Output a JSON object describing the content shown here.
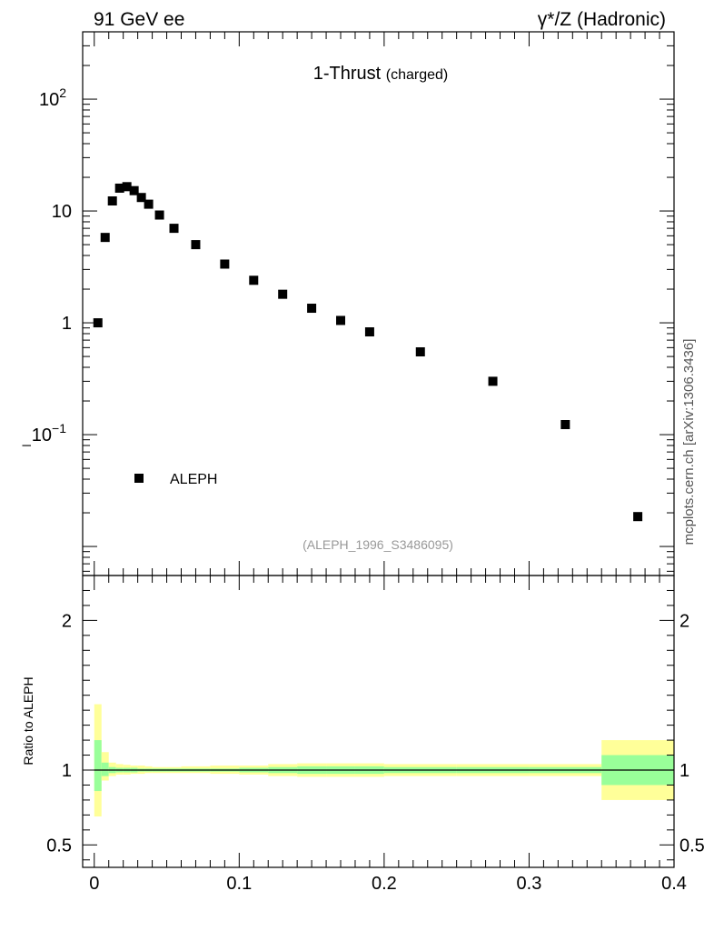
{
  "header": {
    "left": "91 GeV ee",
    "right": "γ*/Z (Hadronic)"
  },
  "side_label": "mcplots.cern.ch [arXiv:1306.3436]",
  "chart_data": [
    {
      "type": "scatter",
      "title_main": "1-Thrust",
      "title_sub": "(charged)",
      "footnote": "(ALEPH_1996_S3486095)",
      "ylabel": "",
      "ylabel_small": "l",
      "yscale": "log",
      "ylim": [
        0.0055,
        400
      ],
      "xlim": [
        -0.008,
        0.4
      ],
      "yticks": [
        {
          "value": 100,
          "base": "10",
          "exp": "2"
        },
        {
          "value": 10,
          "label": "10"
        },
        {
          "value": 1,
          "label": "1"
        },
        {
          "value": 0.1,
          "base": "10",
          "exp": "−1"
        }
      ],
      "legend": {
        "position": "bottom-left",
        "entries": [
          "ALEPH"
        ]
      },
      "series": [
        {
          "name": "ALEPH",
          "marker": "square",
          "color": "#000000",
          "x": [
            0.0025,
            0.0075,
            0.0125,
            0.0175,
            0.0225,
            0.0275,
            0.0325,
            0.0375,
            0.045,
            0.055,
            0.07,
            0.09,
            0.11,
            0.13,
            0.15,
            0.17,
            0.19,
            0.225,
            0.275,
            0.325,
            0.375
          ],
          "y": [
            1.0,
            5.8,
            12.3,
            16.0,
            16.5,
            15.2,
            13.2,
            11.5,
            9.2,
            7.0,
            5.0,
            3.35,
            2.4,
            1.8,
            1.35,
            1.05,
            0.83,
            0.55,
            0.3,
            0.123,
            0.0185
          ]
        }
      ]
    },
    {
      "type": "area",
      "ylabel": "Ratio to ALEPH",
      "xlim": [
        -0.008,
        0.4
      ],
      "ylim": [
        0.35,
        2.3
      ],
      "xticks": [
        {
          "value": 0,
          "label": "0"
        },
        {
          "value": 0.1,
          "label": "0.1"
        },
        {
          "value": 0.2,
          "label": "0.2"
        },
        {
          "value": 0.3,
          "label": "0.3"
        },
        {
          "value": 0.4,
          "label": "0.4"
        }
      ],
      "yticks": [
        {
          "value": 2,
          "label": "2"
        },
        {
          "value": 1,
          "label": "1"
        },
        {
          "value": 0.5,
          "label": "0.5"
        }
      ],
      "colors": {
        "inner": "#99ff99",
        "outer": "#ffff99",
        "line": "#000000"
      },
      "bands": [
        {
          "x0": 0.0,
          "x1": 0.005,
          "inner": [
            0.86,
            1.2
          ],
          "outer": [
            0.69,
            1.44
          ]
        },
        {
          "x0": 0.005,
          "x1": 0.01,
          "inner": [
            0.96,
            1.05
          ],
          "outer": [
            0.93,
            1.12
          ]
        },
        {
          "x0": 0.01,
          "x1": 0.015,
          "inner": [
            0.98,
            1.02
          ],
          "outer": [
            0.96,
            1.05
          ]
        },
        {
          "x0": 0.015,
          "x1": 0.02,
          "inner": [
            0.985,
            1.015
          ],
          "outer": [
            0.97,
            1.04
          ]
        },
        {
          "x0": 0.02,
          "x1": 0.025,
          "inner": [
            0.985,
            1.015
          ],
          "outer": [
            0.97,
            1.035
          ]
        },
        {
          "x0": 0.025,
          "x1": 0.03,
          "inner": [
            0.985,
            1.015
          ],
          "outer": [
            0.975,
            1.03
          ]
        },
        {
          "x0": 0.03,
          "x1": 0.035,
          "inner": [
            0.99,
            1.01
          ],
          "outer": [
            0.975,
            1.03
          ]
        },
        {
          "x0": 0.035,
          "x1": 0.04,
          "inner": [
            0.99,
            1.01
          ],
          "outer": [
            0.98,
            1.025
          ]
        },
        {
          "x0": 0.04,
          "x1": 0.05,
          "inner": [
            0.99,
            1.01
          ],
          "outer": [
            0.98,
            1.02
          ]
        },
        {
          "x0": 0.05,
          "x1": 0.06,
          "inner": [
            0.99,
            1.01
          ],
          "outer": [
            0.98,
            1.02
          ]
        },
        {
          "x0": 0.06,
          "x1": 0.08,
          "inner": [
            0.99,
            1.01
          ],
          "outer": [
            0.98,
            1.025
          ]
        },
        {
          "x0": 0.08,
          "x1": 0.1,
          "inner": [
            0.99,
            1.01
          ],
          "outer": [
            0.975,
            1.03
          ]
        },
        {
          "x0": 0.1,
          "x1": 0.12,
          "inner": [
            0.985,
            1.015
          ],
          "outer": [
            0.97,
            1.03
          ]
        },
        {
          "x0": 0.12,
          "x1": 0.14,
          "inner": [
            0.98,
            1.02
          ],
          "outer": [
            0.96,
            1.04
          ]
        },
        {
          "x0": 0.14,
          "x1": 0.16,
          "inner": [
            0.975,
            1.025
          ],
          "outer": [
            0.955,
            1.045
          ]
        },
        {
          "x0": 0.16,
          "x1": 0.18,
          "inner": [
            0.975,
            1.025
          ],
          "outer": [
            0.955,
            1.045
          ]
        },
        {
          "x0": 0.18,
          "x1": 0.2,
          "inner": [
            0.975,
            1.025
          ],
          "outer": [
            0.955,
            1.045
          ]
        },
        {
          "x0": 0.2,
          "x1": 0.25,
          "inner": [
            0.98,
            1.02
          ],
          "outer": [
            0.96,
            1.04
          ]
        },
        {
          "x0": 0.25,
          "x1": 0.3,
          "inner": [
            0.98,
            1.02
          ],
          "outer": [
            0.96,
            1.04
          ]
        },
        {
          "x0": 0.3,
          "x1": 0.35,
          "inner": [
            0.98,
            1.02
          ],
          "outer": [
            0.96,
            1.04
          ]
        },
        {
          "x0": 0.35,
          "x1": 0.4,
          "inner": [
            0.9,
            1.1
          ],
          "outer": [
            0.8,
            1.2
          ]
        }
      ],
      "reference": 1
    }
  ]
}
